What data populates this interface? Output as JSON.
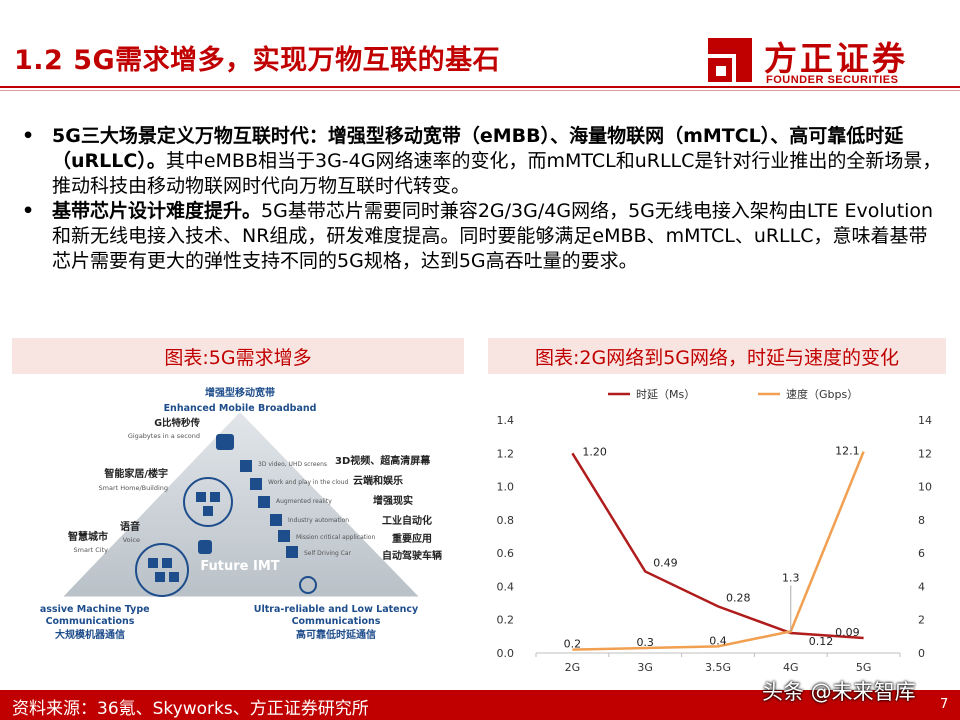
{
  "header": {
    "title": "1.2 5G需求增多，实现万物互联的基石",
    "logo_cn": "方正证券",
    "logo_en": "FOUNDER SECURITIES",
    "brand_color": "#c00000"
  },
  "bullets": [
    {
      "bold": "5G三大场景定义万物互联时代：增强型移动宽带（eMBB）、海量物联网（mMTCL）、高可靠低时延（uRLLC）。",
      "text": "其中eMBB相当于3G-4G网络速率的变化，而mMTCL和uRLLC是针对行业推出的全新场景，推动科技由移动物联网时代向万物互联时代转变。"
    },
    {
      "bold": "基带芯片设计难度提升。",
      "text": "5G基带芯片需要同时兼容2G/3G/4G网络，5G无线电接入架构由LTE Evolution和新无线电接入技术、NR组成，研发难度提高。同时要能够满足eMBB、mMTCL、uRLLC，意味着基带芯片需要有更大的弹性支持不同的5G规格，达到5G高吞吐量的要求。"
    }
  ],
  "left_panel": {
    "heading": "图表:5G需求增多",
    "top_cn": "增强型移动宽带",
    "top_en": "Enhanced Mobile Broadband",
    "bottom_left_en_1": "Massive Machine Type",
    "bottom_left_en_2": "Communications",
    "bottom_left_cn": "大规模机器通信",
    "bottom_right_en_1": "Ultra-reliable and Low Latency",
    "bottom_right_en_2": "Communications",
    "bottom_right_cn": "高可靠低时延通信",
    "center": "Future IMT",
    "left_labels": [
      {
        "cn": "G比特秒传",
        "en": "Gigabytes in a second"
      },
      {
        "cn": "智能家居/楼宇",
        "en": "Smart Home/Building"
      },
      {
        "cn": "语音",
        "en": "Voice"
      },
      {
        "cn": "智慧城市",
        "en": "Smart City"
      }
    ],
    "right_labels": [
      {
        "cn": "3D视频、超高清屏幕",
        "en": "3D video, UHD screens"
      },
      {
        "cn": "云端和娱乐",
        "en": "Work and play in the cloud"
      },
      {
        "cn": "增强现实",
        "en": "Augmented reality"
      },
      {
        "cn": "工业自动化",
        "en": "Industry automation"
      },
      {
        "cn": "重要应用",
        "en": "Mission critical application"
      },
      {
        "cn": "自动驾驶车辆",
        "en": "Self Driving Car"
      }
    ]
  },
  "right_panel": {
    "heading": "图表:2G网络到5G网络，时延与速度的变化"
  },
  "chart_data": {
    "type": "line",
    "categories": [
      "2G",
      "3G",
      "3.5G",
      "4G",
      "5G"
    ],
    "series": [
      {
        "name": "时延（Ms）",
        "axis": "left",
        "color": "#b01c1c",
        "values": [
          1.2,
          0.49,
          0.28,
          0.12,
          0.09
        ],
        "labels": [
          "1.20",
          "0.49",
          "0.28",
          "0.12",
          "0.09"
        ]
      },
      {
        "name": "速度（Gbps）",
        "axis": "right",
        "color": "#f0a050",
        "values": [
          0.2,
          0.3,
          0.4,
          1.3,
          12.1
        ],
        "labels": [
          "0.2",
          "0.3",
          "0.4",
          "1.3",
          "12.1"
        ]
      }
    ],
    "left_axis": {
      "min": 0,
      "max": 1.4,
      "ticks": [
        "0.0",
        "0.2",
        "0.4",
        "0.6",
        "0.8",
        "1.0",
        "1.2",
        "1.4"
      ]
    },
    "right_axis": {
      "min": 0,
      "max": 14,
      "ticks": [
        "0",
        "2",
        "4",
        "6",
        "8",
        "10",
        "12",
        "14"
      ]
    },
    "legend": "top"
  },
  "footer": {
    "source": "资料来源：36氪、Skyworks、方正证券研究所",
    "watermark": "头条 @未来智库",
    "page": "7"
  }
}
